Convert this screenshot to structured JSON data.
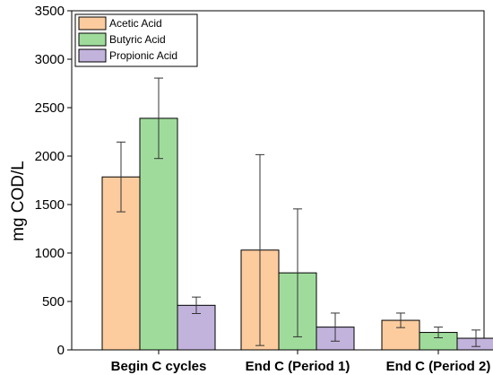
{
  "chart_data": {
    "type": "bar",
    "title": "",
    "xlabel": "",
    "ylabel": "mg COD/L",
    "ylim": [
      0,
      3500
    ],
    "yticks": [
      0,
      500,
      1000,
      1500,
      2000,
      2500,
      3000,
      3500
    ],
    "categories": [
      "Begin C cycles",
      "End C (Period 1)",
      "End C (Period 2)"
    ],
    "series": [
      {
        "name": "Acetic Acid",
        "color": "#fdcc9e",
        "values": [
          1785,
          1030,
          305
        ],
        "error": [
          360,
          985,
          75
        ]
      },
      {
        "name": "Butyric Acid",
        "color": "#9fdc9c",
        "values": [
          2390,
          795,
          180
        ],
        "error": [
          415,
          660,
          55
        ]
      },
      {
        "name": "Propionic Acid",
        "color": "#c2b3dc",
        "values": [
          460,
          235,
          120
        ],
        "error": [
          85,
          145,
          85
        ]
      }
    ],
    "legend_position": "top-left",
    "grid": false
  }
}
